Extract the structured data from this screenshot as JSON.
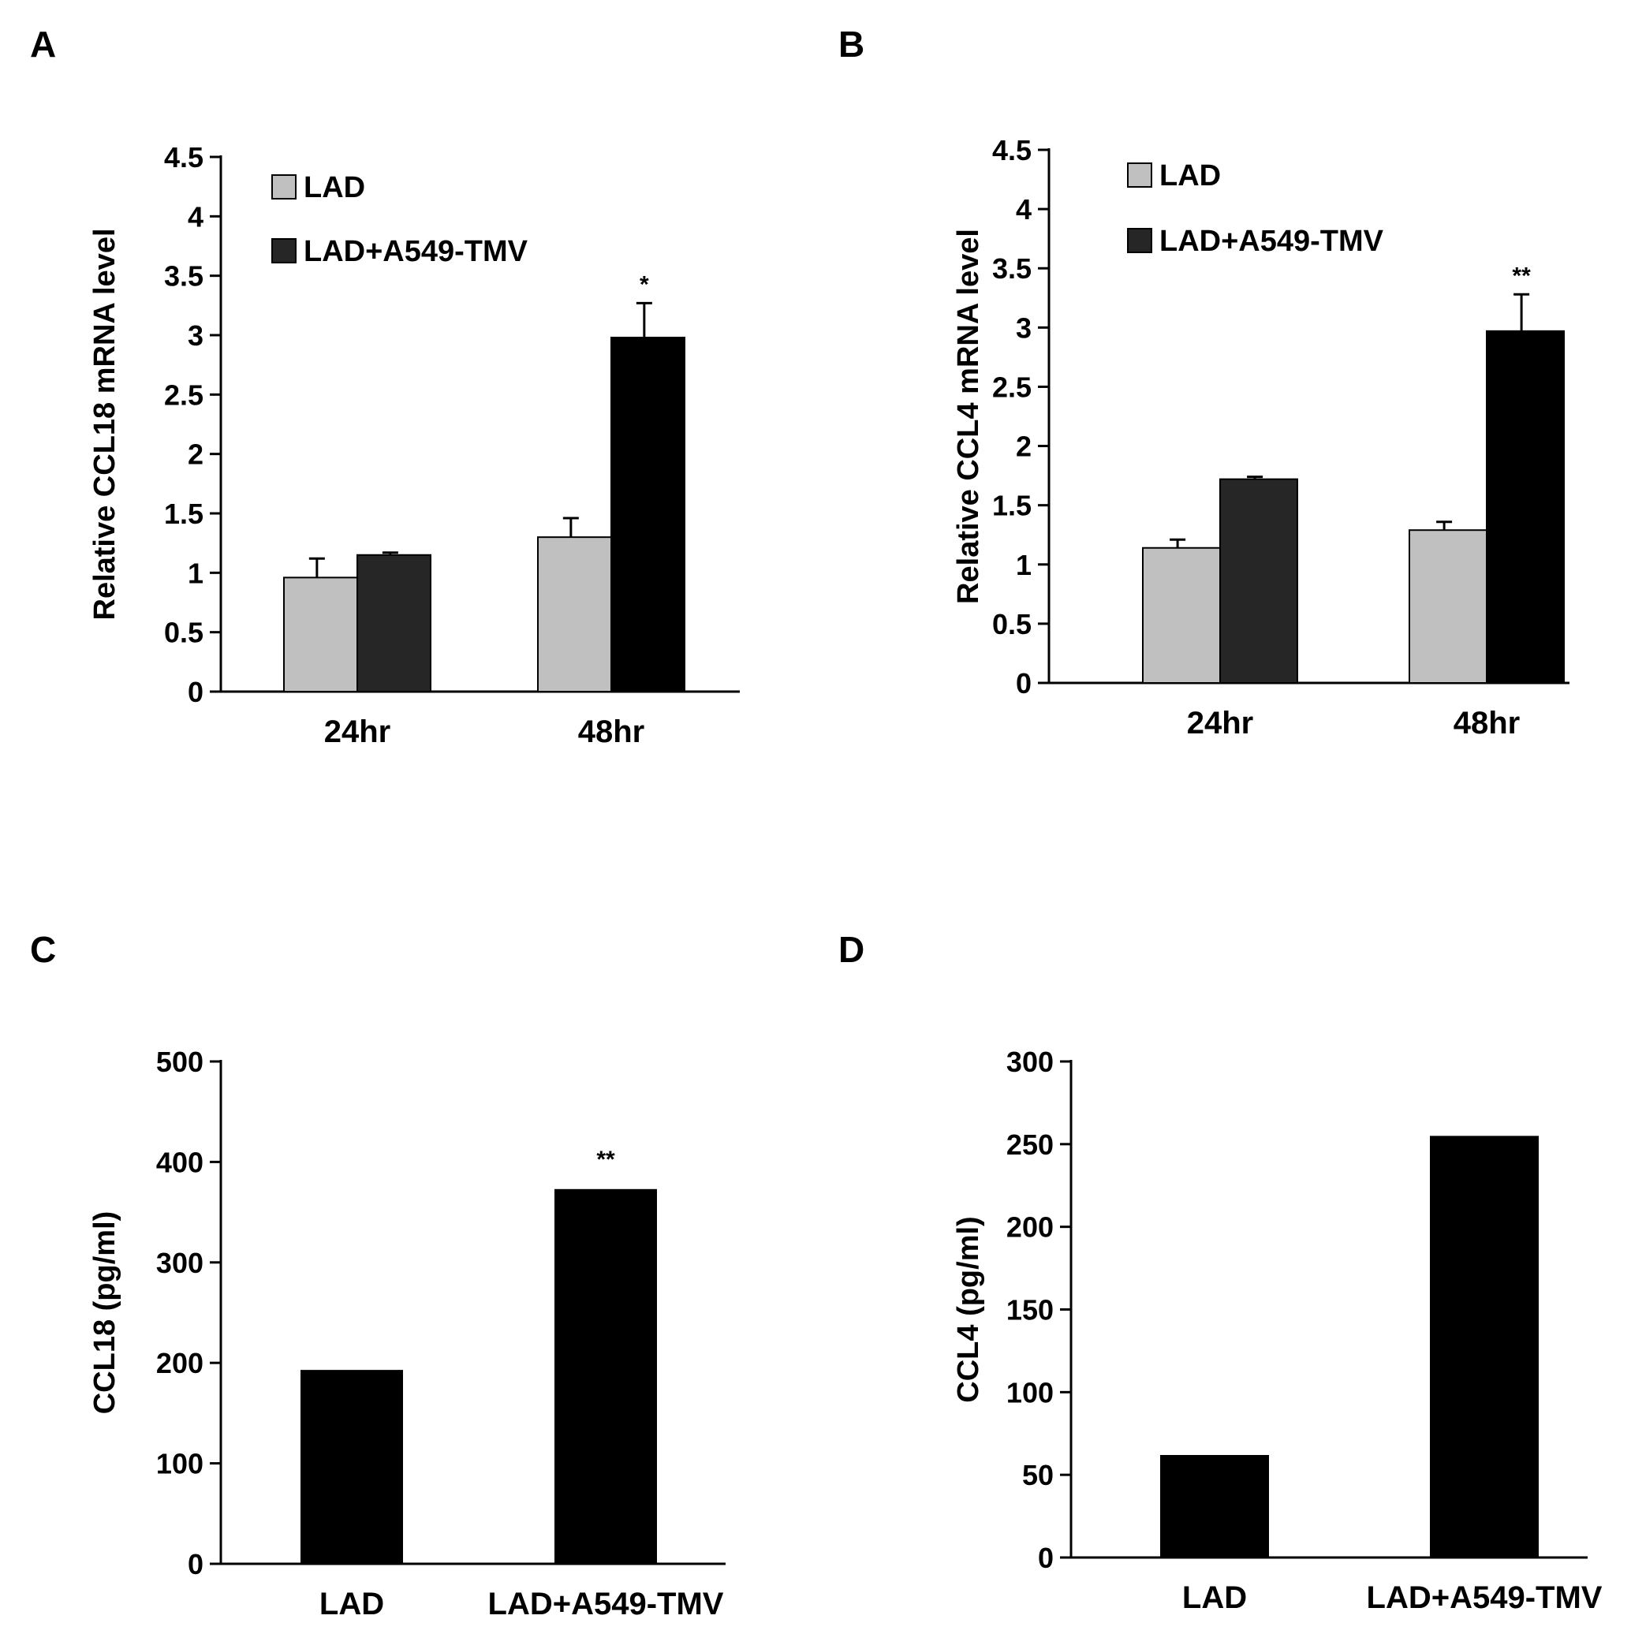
{
  "colors": {
    "lad": "#c0c0c0",
    "lad_tmv_24": "#262626",
    "lad_tmv_48": "#000000",
    "bar_solid": "#000000",
    "axis": "#000000"
  },
  "chart_data": [
    {
      "panel_label": "A",
      "type": "bar",
      "ylabel": "Relative CCL18  mRNA level",
      "categories": [
        "24hr",
        "48hr"
      ],
      "ylim": [
        0,
        4.5
      ],
      "yticks": [
        "0",
        "0.5",
        "1",
        "1.5",
        "2",
        "2.5",
        "3",
        "3.5",
        "4",
        "4.5"
      ],
      "legend": [
        "LAD",
        "LAD+A549-TMV"
      ],
      "series": [
        {
          "name": "LAD",
          "values": [
            0.96,
            1.3
          ],
          "errors": [
            0.16,
            0.16
          ]
        },
        {
          "name": "LAD+A549-TMV",
          "values": [
            1.15,
            2.98
          ],
          "errors": [
            0.02,
            0.29
          ]
        }
      ],
      "annotations": [
        {
          "text": "*",
          "category": 1,
          "series": 1
        }
      ]
    },
    {
      "panel_label": "B",
      "type": "bar",
      "ylabel": "Relative CCL4  mRNA level",
      "categories": [
        "24hr",
        "48hr"
      ],
      "ylim": [
        0,
        4.5
      ],
      "yticks": [
        "0",
        "0.5",
        "1",
        "1.5",
        "2",
        "2.5",
        "3",
        "3.5",
        "4",
        "4.5"
      ],
      "legend": [
        "LAD",
        "LAD+A549-TMV"
      ],
      "series": [
        {
          "name": "LAD",
          "values": [
            1.14,
            1.29
          ],
          "errors": [
            0.07,
            0.07
          ]
        },
        {
          "name": "LAD+A549-TMV",
          "values": [
            1.72,
            2.97
          ],
          "errors": [
            0.02,
            0.31
          ]
        }
      ],
      "annotations": [
        {
          "text": "**",
          "category": 1,
          "series": 1
        }
      ]
    },
    {
      "panel_label": "C",
      "type": "bar",
      "ylabel": "CCL18 (pg/ml)",
      "categories": [
        "LAD",
        "LAD+A549-TMV"
      ],
      "ylim": [
        0,
        500
      ],
      "yticks": [
        "0",
        "100",
        "200",
        "300",
        "400",
        "500"
      ],
      "values": [
        193,
        373
      ],
      "annotations": [
        {
          "text": "**",
          "category": 1
        }
      ]
    },
    {
      "panel_label": "D",
      "type": "bar",
      "ylabel": "CCL4 (pg/ml)",
      "categories": [
        "LAD",
        "LAD+A549-TMV"
      ],
      "ylim": [
        0,
        300
      ],
      "yticks": [
        "0",
        "50",
        "100",
        "150",
        "200",
        "250",
        "300"
      ],
      "values": [
        62,
        255
      ],
      "annotations": []
    }
  ]
}
